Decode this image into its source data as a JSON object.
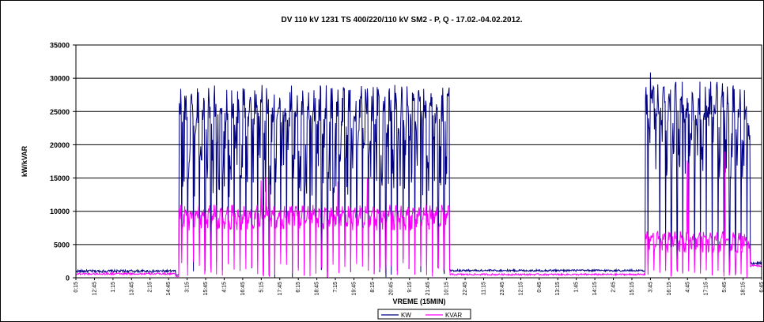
{
  "chart_data": {
    "type": "line",
    "title": "DV 110 kV 1231 TS 400/220/110 kV SM2 - P, Q - 17.02.-04.02.2012.",
    "xlabel": "VREME (15MIN)",
    "ylabel": "kW/kVAR",
    "ylim": [
      0,
      35000
    ],
    "yticks": [
      0,
      5000,
      10000,
      15000,
      20000,
      25000,
      30000,
      35000
    ],
    "grid": true,
    "legend_position": "bottom-center",
    "x_tick_labels": [
      "0:15",
      "12:45",
      "1:15",
      "13:45",
      "2:15",
      "14:45",
      "3:15",
      "15:45",
      "4:15",
      "16:45",
      "5:15",
      "17:45",
      "6:15",
      "18:45",
      "7:15",
      "19:45",
      "8:15",
      "20:45",
      "9:15",
      "21:45",
      "10:15",
      "22:45",
      "11:15",
      "23:45",
      "12:15",
      "0:45",
      "13:15",
      "1:45",
      "14:15",
      "2:45",
      "15:15",
      "3:45",
      "16:15",
      "4:45",
      "17:15",
      "5:45",
      "18:15",
      "6:45"
    ],
    "series": [
      {
        "name": "KW",
        "color": "#000080",
        "segments": [
          {
            "x": [
              0,
              0.145
            ],
            "mode": "flat",
            "level": 1000,
            "noise": 400
          },
          {
            "x": [
              0.145,
              0.15
            ],
            "mode": "flat",
            "level": 400,
            "noise": 200
          },
          {
            "x": [
              0.15,
              0.545
            ],
            "mode": "oscillate",
            "high": 29000,
            "low": 0,
            "mid": 16000,
            "period": 0.0085
          },
          {
            "x": [
              0.545,
              0.83
            ],
            "mode": "flat",
            "level": 1100,
            "noise": 300
          },
          {
            "x": [
              0.83,
              0.983
            ],
            "mode": "oscillate",
            "high": 29500,
            "low": 0,
            "mid": 18000,
            "period": 0.0085,
            "peak": 31000
          },
          {
            "x": [
              0.983,
              1.0
            ],
            "mode": "flat",
            "level": 2200,
            "noise": 400
          }
        ]
      },
      {
        "name": "KVAR",
        "color": "#ff00ff",
        "segments": [
          {
            "x": [
              0,
              0.145
            ],
            "mode": "flat",
            "level": 600,
            "noise": 300
          },
          {
            "x": [
              0.145,
              0.15
            ],
            "mode": "flat",
            "level": 200,
            "noise": 100
          },
          {
            "x": [
              0.15,
              0.545
            ],
            "mode": "oscillate",
            "high": 11000,
            "low": 0,
            "mid": 8000,
            "period": 0.0085,
            "peak": 15500
          },
          {
            "x": [
              0.545,
              0.83
            ],
            "mode": "flat",
            "level": 500,
            "noise": 250
          },
          {
            "x": [
              0.83,
              0.983
            ],
            "mode": "oscillate",
            "high": 7000,
            "low": 0,
            "mid": 4500,
            "period": 0.0085,
            "peak": 19000
          },
          {
            "x": [
              0.983,
              1.0
            ],
            "mode": "flat",
            "level": 1800,
            "noise": 300
          }
        ]
      }
    ]
  }
}
